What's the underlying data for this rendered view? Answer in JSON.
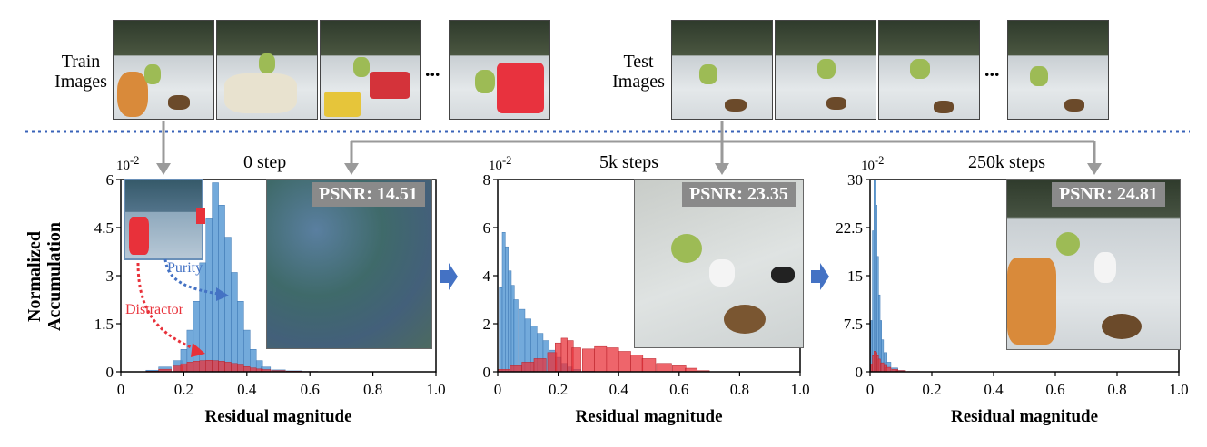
{
  "top": {
    "train_label_line1": "Train",
    "train_label_line2": "Images",
    "test_label_line1": "Test",
    "test_label_line2": "Images",
    "ellipsis": "..."
  },
  "colors": {
    "purity": "#5b9bd5",
    "distractor": "#e8313a",
    "separator": "#3a63b8",
    "connector": "#9a9a9a"
  },
  "panels": [
    {
      "title": "0 step",
      "exponent": "10",
      "exponent_sup": "-2",
      "psnr": "PSNR: 14.51",
      "yticks": [
        "0",
        "1.5",
        "3",
        "4.5",
        "6"
      ],
      "xticks": [
        "0",
        "0.2",
        "0.4",
        "0.6",
        "0.8",
        "1.0"
      ],
      "xlabel": "Residual magnitude"
    },
    {
      "title": "5k steps",
      "exponent": "10",
      "exponent_sup": "-2",
      "psnr": "PSNR: 23.35",
      "yticks": [
        "0",
        "2",
        "4",
        "6",
        "8"
      ],
      "xticks": [
        "0",
        "0.2",
        "0.4",
        "0.6",
        "0.8",
        "1.0"
      ],
      "xlabel": "Residual magnitude"
    },
    {
      "title": "250k steps",
      "exponent": "10",
      "exponent_sup": "-2",
      "psnr": "PSNR: 24.81",
      "yticks": [
        "0",
        "7.5",
        "15",
        "22.5",
        "30"
      ],
      "xticks": [
        "0",
        "0.2",
        "0.4",
        "0.6",
        "0.8",
        "1.0"
      ],
      "xlabel": "Residual magnitude"
    }
  ],
  "ylabel_line1": "Normalized",
  "ylabel_line2": "Accumulation",
  "annotations": {
    "purity": "Purity",
    "distractor": "Distractor"
  },
  "chart_data": [
    {
      "type": "bar",
      "title": "0 step",
      "xlabel": "Residual magnitude",
      "ylabel": "Normalized Accumulation (x10^-2)",
      "xlim": [
        0,
        1.0
      ],
      "ylim": [
        0,
        6
      ],
      "series": [
        {
          "name": "Purity",
          "x": [
            0.1,
            0.14,
            0.18,
            0.2,
            0.22,
            0.24,
            0.26,
            0.28,
            0.3,
            0.32,
            0.34,
            0.36,
            0.38,
            0.4,
            0.42,
            0.44,
            0.46,
            0.5,
            0.55,
            0.6
          ],
          "values": [
            0.05,
            0.15,
            0.35,
            0.7,
            1.3,
            2.2,
            3.4,
            4.8,
            5.9,
            5.2,
            4.2,
            3.1,
            2.2,
            1.3,
            0.7,
            0.35,
            0.15,
            0.06,
            0.03,
            0.01
          ]
        },
        {
          "name": "Distractor",
          "x": [
            0.1,
            0.14,
            0.18,
            0.2,
            0.22,
            0.24,
            0.26,
            0.28,
            0.3,
            0.32,
            0.34,
            0.36,
            0.38,
            0.4,
            0.42,
            0.44,
            0.46,
            0.5,
            0.55,
            0.6
          ],
          "values": [
            0.02,
            0.08,
            0.18,
            0.25,
            0.3,
            0.33,
            0.35,
            0.36,
            0.35,
            0.33,
            0.3,
            0.26,
            0.21,
            0.16,
            0.12,
            0.09,
            0.07,
            0.04,
            0.02,
            0.01
          ]
        }
      ]
    },
    {
      "type": "bar",
      "title": "5k steps",
      "xlabel": "Residual magnitude",
      "ylabel": "Normalized Accumulation (x10^-2)",
      "xlim": [
        0,
        1.0
      ],
      "ylim": [
        0,
        8
      ],
      "series": [
        {
          "name": "Purity",
          "x": [
            0.01,
            0.02,
            0.03,
            0.04,
            0.05,
            0.06,
            0.08,
            0.1,
            0.12,
            0.14,
            0.16,
            0.18,
            0.2,
            0.22,
            0.24,
            0.26,
            0.3
          ],
          "values": [
            3.5,
            5.8,
            5.2,
            4.2,
            3.6,
            3.0,
            2.6,
            2.2,
            1.9,
            1.6,
            1.3,
            0.9,
            0.6,
            0.35,
            0.2,
            0.1,
            0.03
          ]
        },
        {
          "name": "Distractor",
          "x": [
            0.02,
            0.06,
            0.1,
            0.14,
            0.18,
            0.2,
            0.22,
            0.24,
            0.26,
            0.3,
            0.34,
            0.38,
            0.42,
            0.46,
            0.5,
            0.55,
            0.6,
            0.64,
            0.68
          ],
          "values": [
            0.1,
            0.25,
            0.4,
            0.55,
            0.8,
            1.2,
            1.4,
            1.3,
            1.0,
            0.95,
            1.05,
            1.0,
            0.85,
            0.7,
            0.55,
            0.35,
            0.25,
            0.15,
            0.05
          ]
        }
      ]
    },
    {
      "type": "bar",
      "title": "250k steps",
      "xlabel": "Residual magnitude",
      "ylabel": "Normalized Accumulation (x10^-2)",
      "xlim": [
        0,
        1.0
      ],
      "ylim": [
        0,
        30
      ],
      "series": [
        {
          "name": "Purity",
          "x": [
            0.005,
            0.01,
            0.015,
            0.02,
            0.025,
            0.03,
            0.035,
            0.04,
            0.05,
            0.06,
            0.08,
            0.1
          ],
          "values": [
            8,
            22,
            30,
            26,
            18,
            12,
            8,
            5,
            3,
            1.5,
            0.6,
            0.2
          ]
        },
        {
          "name": "Distractor",
          "x": [
            0.005,
            0.01,
            0.015,
            0.02,
            0.025,
            0.03,
            0.04,
            0.05,
            0.06,
            0.08,
            0.1,
            0.14
          ],
          "values": [
            1.2,
            2.5,
            3.2,
            3.0,
            2.5,
            2.0,
            1.4,
            1.0,
            0.7,
            0.4,
            0.2,
            0.05
          ]
        }
      ]
    }
  ]
}
